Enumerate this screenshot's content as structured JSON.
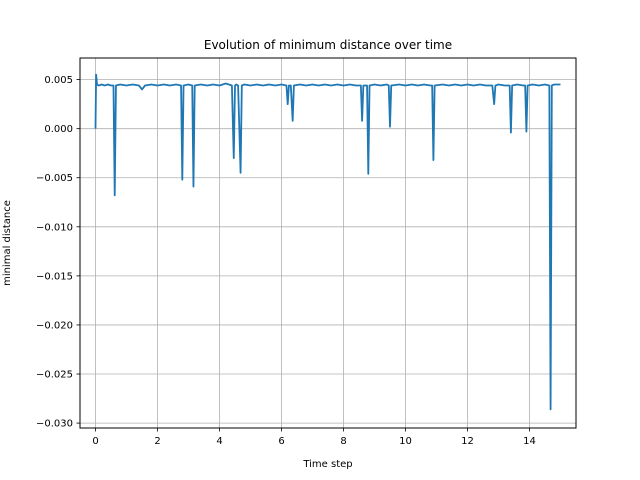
{
  "chart_data": {
    "type": "line",
    "title": "Evolution of minimum distance over time",
    "xlabel": "Time step",
    "ylabel": "minimal distance",
    "xlim": [
      -0.5,
      15.5
    ],
    "ylim": [
      -0.0305,
      0.0072
    ],
    "grid": true,
    "line_color": "#1f77b4",
    "x_ticks": [
      0,
      2,
      4,
      6,
      8,
      10,
      12,
      14
    ],
    "x_tick_labels": [
      "0",
      "2",
      "4",
      "6",
      "8",
      "10",
      "12",
      "14"
    ],
    "y_ticks": [
      0.005,
      0.0,
      -0.005,
      -0.01,
      -0.015,
      -0.02,
      -0.025,
      -0.03
    ],
    "y_tick_labels": [
      "0.005",
      "0.000",
      "−0.005",
      "−0.010",
      "−0.015",
      "−0.020",
      "−0.025",
      "−0.030"
    ],
    "series": [
      {
        "x": [
          0.0,
          0.02,
          0.05,
          0.1,
          0.2,
          0.3,
          0.4,
          0.5,
          0.58,
          0.62,
          0.66,
          0.8,
          1.0,
          1.2,
          1.4,
          1.5,
          1.6,
          1.8,
          2.0,
          2.2,
          2.4,
          2.6,
          2.76,
          2.8,
          2.84,
          3.0,
          3.12,
          3.16,
          3.2,
          3.4,
          3.6,
          3.8,
          4.0,
          4.2,
          4.4,
          4.46,
          4.5,
          4.54,
          4.6,
          4.68,
          4.72,
          4.8,
          5.0,
          5.2,
          5.4,
          5.6,
          5.8,
          6.0,
          6.16,
          6.2,
          6.24,
          6.3,
          6.36,
          6.4,
          6.6,
          6.8,
          7.0,
          7.2,
          7.4,
          7.6,
          7.8,
          8.0,
          8.2,
          8.4,
          8.56,
          8.6,
          8.64,
          8.76,
          8.8,
          8.84,
          9.0,
          9.2,
          9.4,
          9.46,
          9.5,
          9.54,
          9.8,
          10.0,
          10.2,
          10.4,
          10.6,
          10.8,
          10.86,
          10.9,
          10.94,
          11.2,
          11.4,
          11.6,
          11.8,
          12.0,
          12.2,
          12.4,
          12.6,
          12.8,
          12.86,
          12.9,
          13.0,
          13.2,
          13.36,
          13.4,
          13.44,
          13.6,
          13.8,
          13.86,
          13.9,
          13.94,
          14.1,
          14.3,
          14.5,
          14.64,
          14.68,
          14.72,
          14.8,
          15.0
        ],
        "y": [
          0.0,
          0.0055,
          0.0045,
          0.0044,
          0.0045,
          0.0044,
          0.0045,
          0.0044,
          0.0044,
          -0.0068,
          0.0044,
          0.0045,
          0.0044,
          0.0045,
          0.0044,
          0.004,
          0.0044,
          0.0045,
          0.0044,
          0.0045,
          0.0044,
          0.0045,
          0.0044,
          -0.0052,
          0.0044,
          0.0045,
          0.0044,
          -0.0059,
          0.0044,
          0.0045,
          0.0044,
          0.0045,
          0.0044,
          0.0046,
          0.0044,
          -0.003,
          0.0044,
          0.0045,
          0.0044,
          -0.0045,
          0.0044,
          0.0045,
          0.0044,
          0.0045,
          0.0044,
          0.0045,
          0.0044,
          0.0045,
          0.0044,
          0.0025,
          0.0044,
          0.0044,
          0.0008,
          0.0044,
          0.0045,
          0.0044,
          0.0045,
          0.0044,
          0.0045,
          0.0044,
          0.0045,
          0.0044,
          0.0045,
          0.0044,
          0.0044,
          0.0008,
          0.0044,
          0.0044,
          -0.0046,
          0.0044,
          0.0045,
          0.0044,
          0.0045,
          0.0044,
          0.0002,
          0.0044,
          0.0045,
          0.0044,
          0.0045,
          0.0044,
          0.0045,
          0.0044,
          0.0044,
          -0.0032,
          0.0044,
          0.0045,
          0.0044,
          0.0045,
          0.0044,
          0.0045,
          0.0044,
          0.0045,
          0.0044,
          0.0044,
          0.0025,
          0.0044,
          0.0045,
          0.0044,
          0.0044,
          -0.0004,
          0.0044,
          0.0045,
          0.0044,
          0.0044,
          -0.0003,
          0.0044,
          0.0045,
          0.0044,
          0.0045,
          0.0044,
          -0.0286,
          0.0044,
          0.0045,
          0.0045
        ]
      }
    ]
  }
}
